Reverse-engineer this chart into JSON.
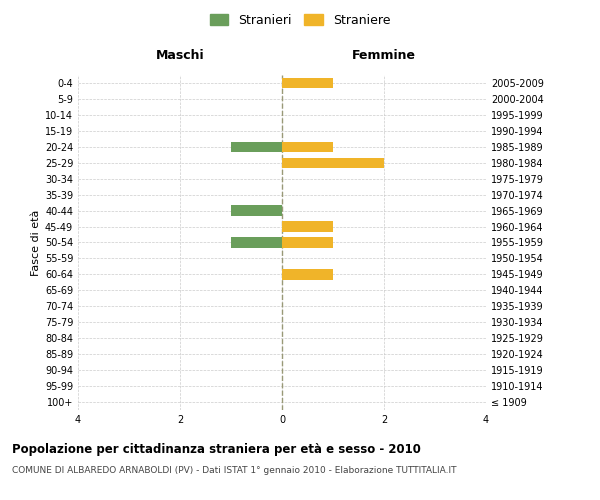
{
  "age_groups": [
    "100+",
    "95-99",
    "90-94",
    "85-89",
    "80-84",
    "75-79",
    "70-74",
    "65-69",
    "60-64",
    "55-59",
    "50-54",
    "45-49",
    "40-44",
    "35-39",
    "30-34",
    "25-29",
    "20-24",
    "15-19",
    "10-14",
    "5-9",
    "0-4"
  ],
  "birth_years": [
    "≤ 1909",
    "1910-1914",
    "1915-1919",
    "1920-1924",
    "1925-1929",
    "1930-1934",
    "1935-1939",
    "1940-1944",
    "1945-1949",
    "1950-1954",
    "1955-1959",
    "1960-1964",
    "1965-1969",
    "1970-1974",
    "1975-1979",
    "1980-1984",
    "1985-1989",
    "1990-1994",
    "1995-1999",
    "2000-2004",
    "2005-2009"
  ],
  "maschi": [
    0,
    0,
    0,
    0,
    0,
    0,
    0,
    0,
    0,
    0,
    -1,
    0,
    -1,
    0,
    0,
    0,
    -1,
    0,
    0,
    0,
    0
  ],
  "femmine": [
    0,
    0,
    0,
    0,
    0,
    0,
    0,
    0,
    1,
    0,
    1,
    1,
    0,
    0,
    0,
    2,
    1,
    0,
    0,
    0,
    1
  ],
  "color_maschi": "#6a9e5b",
  "color_femmine": "#f0b429",
  "title": "Popolazione per cittadinanza straniera per età e sesso - 2010",
  "subtitle": "COMUNE DI ALBAREDO ARNABOLDI (PV) - Dati ISTAT 1° gennaio 2010 - Elaborazione TUTTITALIA.IT",
  "ylabel_left": "Fasce di età",
  "header_left": "Maschi",
  "header_right": "Femmine",
  "legend_maschi": "Stranieri",
  "legend_femmine": "Straniere",
  "xlim": 4,
  "bg_color": "#ffffff",
  "grid_color": "#cccccc",
  "center_line_color": "#999977"
}
